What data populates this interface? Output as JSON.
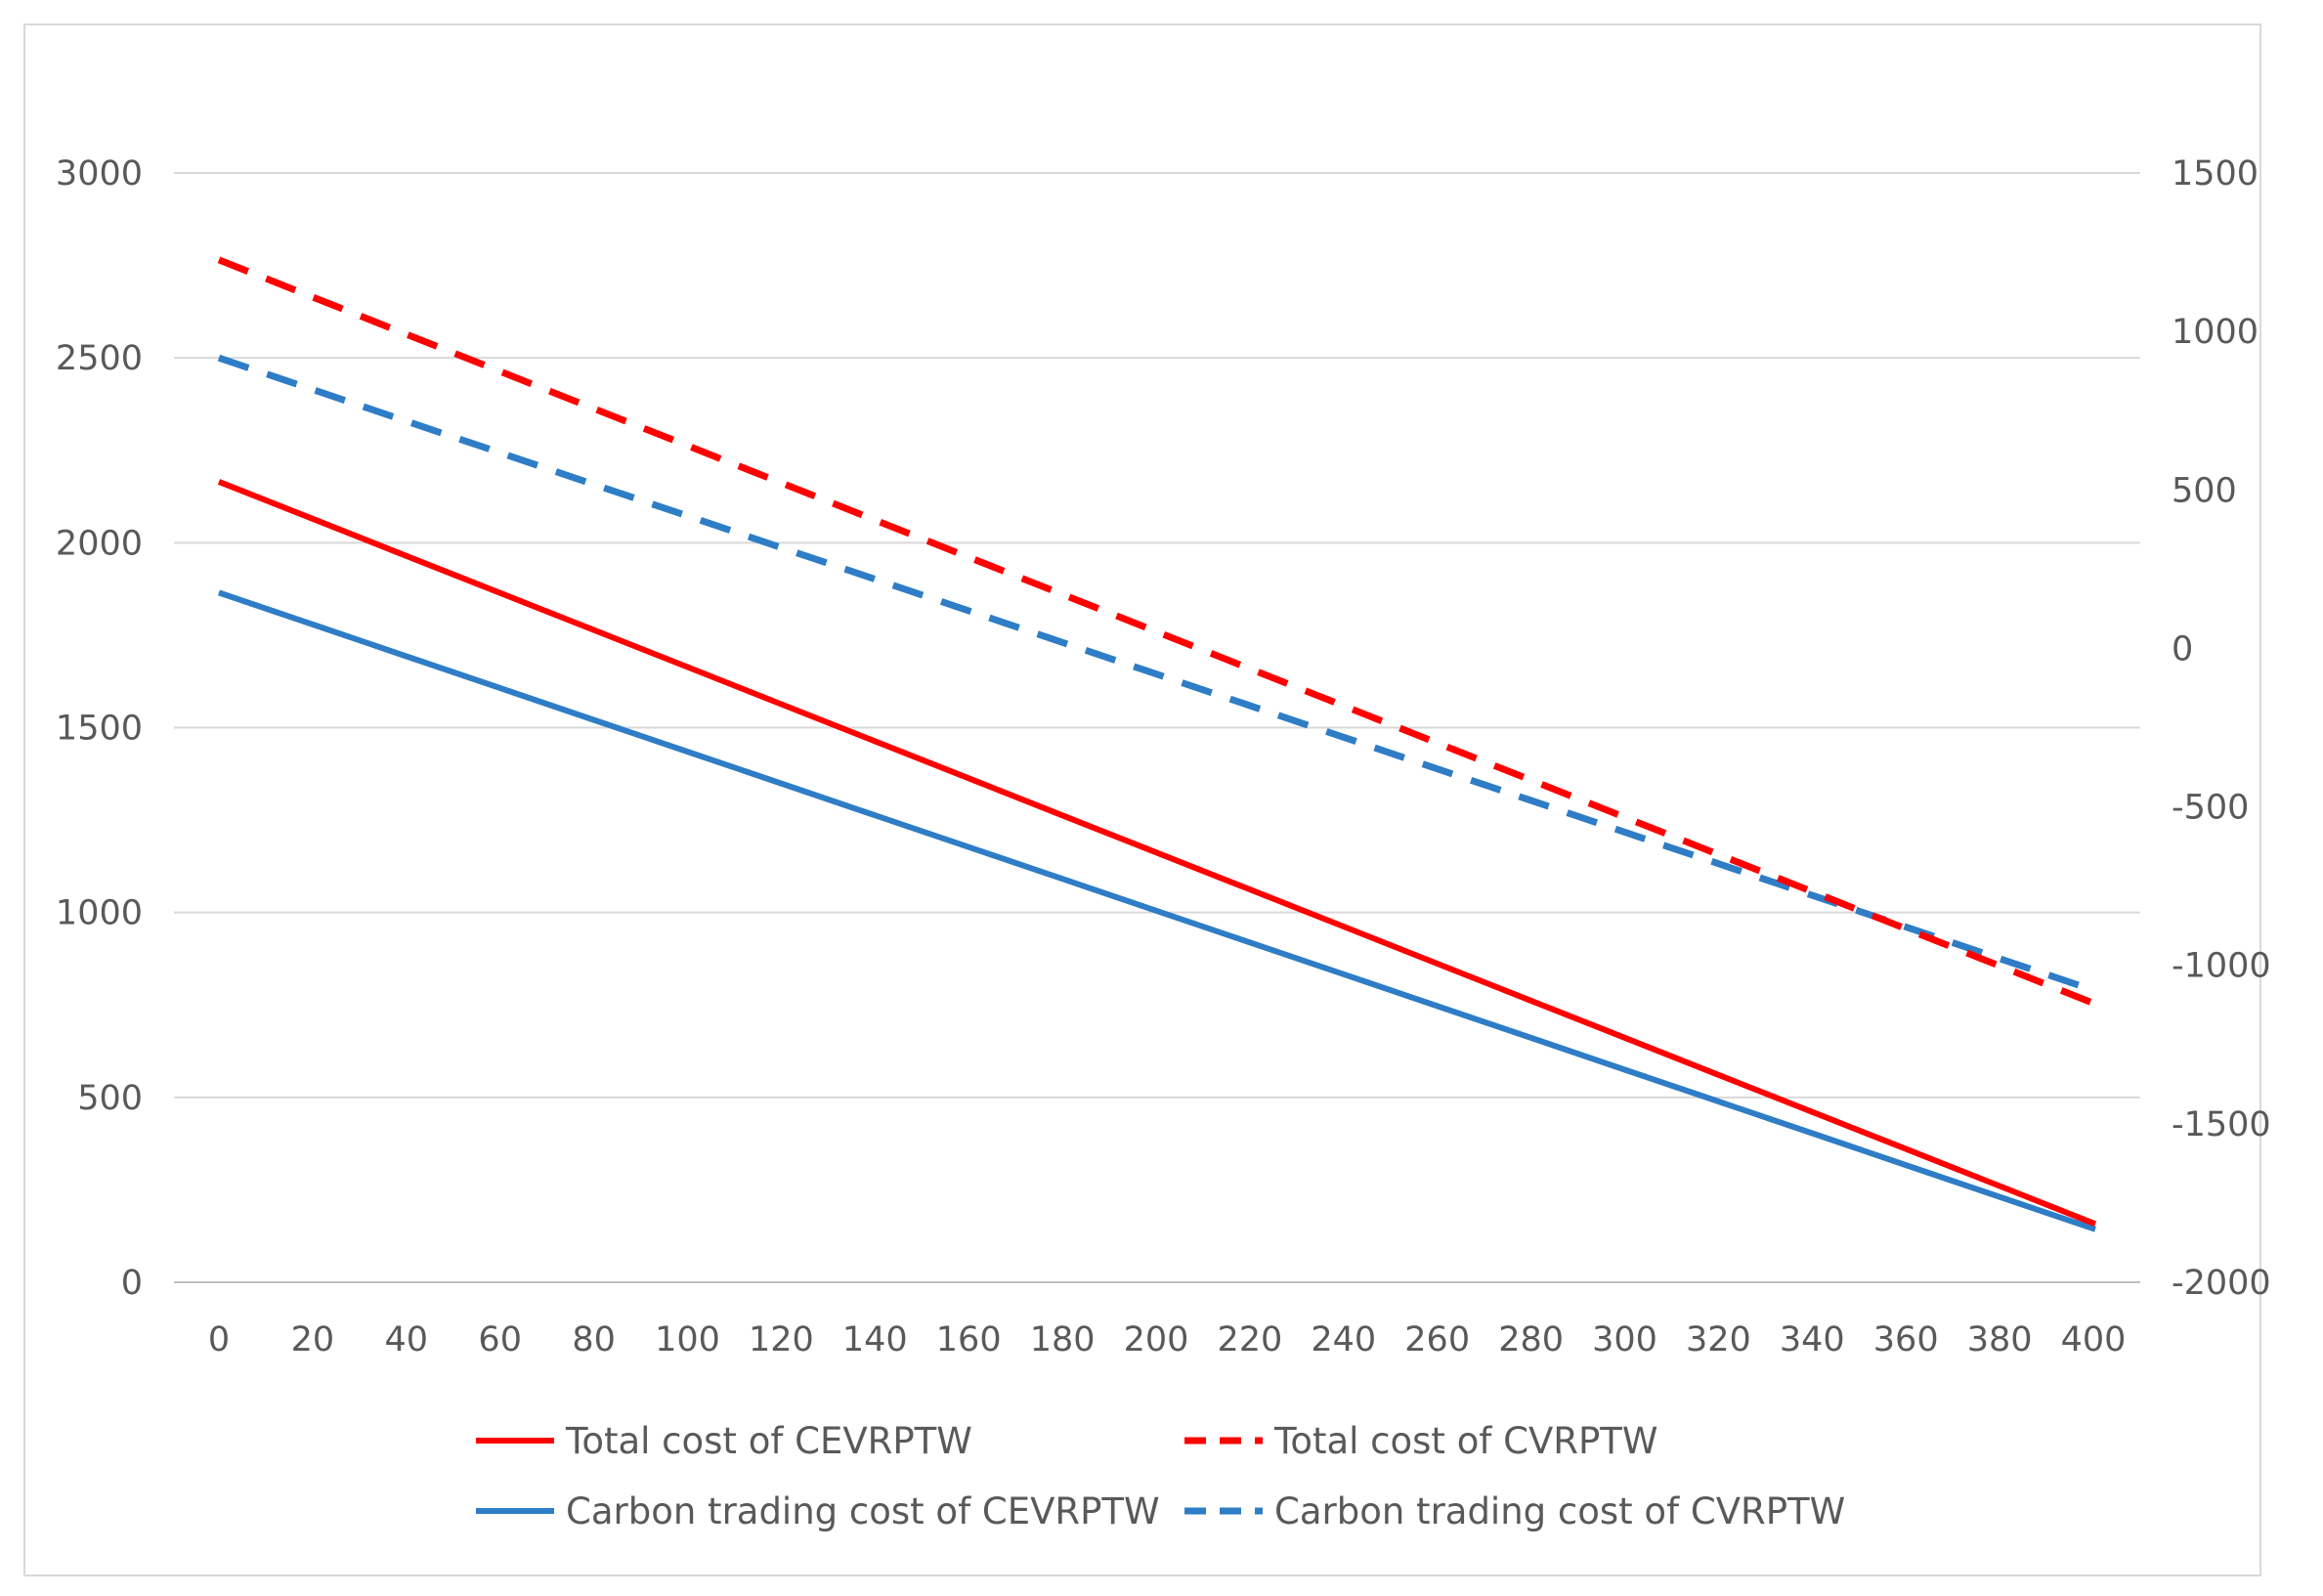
{
  "chart_data": {
    "type": "line",
    "title": "",
    "xlabel": "",
    "ylabel": "",
    "y2label": "",
    "x": [
      0,
      20,
      40,
      60,
      80,
      100,
      120,
      140,
      160,
      180,
      200,
      220,
      240,
      260,
      280,
      300,
      320,
      340,
      360,
      380,
      400
    ],
    "x_tick_labels": [
      "0",
      "20",
      "40",
      "60",
      "80",
      "100",
      "120",
      "140",
      "160",
      "180",
      "200",
      "220",
      "240",
      "260",
      "280",
      "300",
      "320",
      "340",
      "360",
      "380",
      "400"
    ],
    "ylim": [
      0,
      3000
    ],
    "y_ticks": [
      0,
      500,
      1000,
      1500,
      2000,
      2500,
      3000
    ],
    "y_tick_labels": [
      "0",
      "500",
      "1000",
      "1500",
      "2000",
      "2500",
      "3000"
    ],
    "y2lim": [
      -2000,
      1500
    ],
    "y2_ticks": [
      -2000,
      -1500,
      -1000,
      -500,
      0,
      500,
      1000,
      1500
    ],
    "y2_tick_labels": [
      "-2000",
      "-1500",
      "-1000",
      "-500",
      "0",
      "500",
      "1000",
      "1500"
    ],
    "grid": true,
    "legend_position": "bottom",
    "series": [
      {
        "name": "Total cost of CEVRPTW",
        "axis": "left",
        "color": "#ff0000",
        "dash": "solid",
        "start": 2165,
        "end": 160
      },
      {
        "name": "Total cost of CVRPTW",
        "axis": "left",
        "color": "#ff0000",
        "dash": "dashed",
        "start": 2765,
        "end": 755
      },
      {
        "name": "Carbon trading cost of CEVRPTW",
        "axis": "left",
        "color": "#2e7dc6",
        "dash": "solid",
        "start": 1865,
        "end": 145
      },
      {
        "name": "Carbon trading cost of CVRPTW",
        "axis": "left",
        "color": "#2e7dc6",
        "dash": "dashed",
        "start": 2500,
        "end": 790
      }
    ]
  }
}
